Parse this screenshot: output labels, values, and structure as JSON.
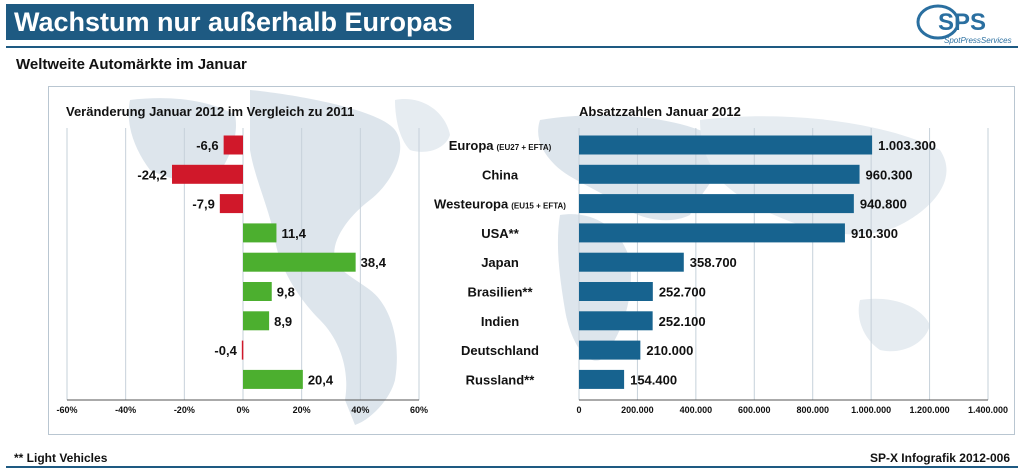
{
  "header": {
    "title": "Wachstum nur außerhalb Europas",
    "subtitle": "Weltweite Automärkte im Januar"
  },
  "logo": {
    "text": "SPS",
    "tagline": "SpotPressServices"
  },
  "footer": {
    "note": "** Light Vehicles",
    "source": "SP-X Infografik 2012-006"
  },
  "colors": {
    "negative": "#d0182a",
    "positive": "#4caf2f",
    "sales": "#17638f",
    "title_bg": "#1e5a82"
  },
  "chart_data": [
    {
      "type": "bar",
      "orientation": "horizontal",
      "title": "Veränderung Januar 2012 im Vergleich zu 2011",
      "categories": [
        "Europa",
        "China",
        "Westeuropa",
        "USA**",
        "Japan",
        "Brasilien**",
        "Indien",
        "Deutschland",
        "Russland**"
      ],
      "values": [
        -6.6,
        -24.2,
        -7.9,
        11.4,
        38.4,
        9.8,
        8.9,
        -0.4,
        20.4
      ],
      "value_labels": [
        "-6,6",
        "-24,2",
        "-7,9",
        "11,4",
        "38,4",
        "9,8",
        "8,9",
        "-0,4",
        "20,4"
      ],
      "xlim": [
        -60,
        60
      ],
      "ticks": [
        -60,
        -40,
        -20,
        0,
        20,
        40,
        60
      ],
      "tick_labels": [
        "-60%",
        "-40%",
        "-20%",
        "0%",
        "20%",
        "40%",
        "60%"
      ]
    },
    {
      "type": "bar",
      "orientation": "horizontal",
      "title": "Absatzzahlen Januar 2012",
      "categories": [
        "Europa",
        "China",
        "Westeuropa",
        "USA**",
        "Japan",
        "Brasilien**",
        "Indien",
        "Deutschland",
        "Russland**"
      ],
      "category_notes": [
        "(EU27 + EFTA)",
        "",
        "(EU15 + EFTA)",
        "",
        "",
        "",
        "",
        "",
        ""
      ],
      "values": [
        1003300,
        960300,
        940800,
        910300,
        358700,
        252700,
        252100,
        210000,
        154400
      ],
      "value_labels": [
        "1.003.300",
        "960.300",
        "940.800",
        "910.300",
        "358.700",
        "252.700",
        "252.100",
        "210.000",
        "154.400"
      ],
      "xlim": [
        0,
        1400000
      ],
      "ticks": [
        0,
        200000,
        400000,
        600000,
        800000,
        1000000,
        1200000,
        1400000
      ],
      "tick_labels": [
        "0",
        "200.000",
        "400.000",
        "600.000",
        "800.000",
        "1.000.000",
        "1.200.000",
        "1.400.000"
      ]
    }
  ]
}
